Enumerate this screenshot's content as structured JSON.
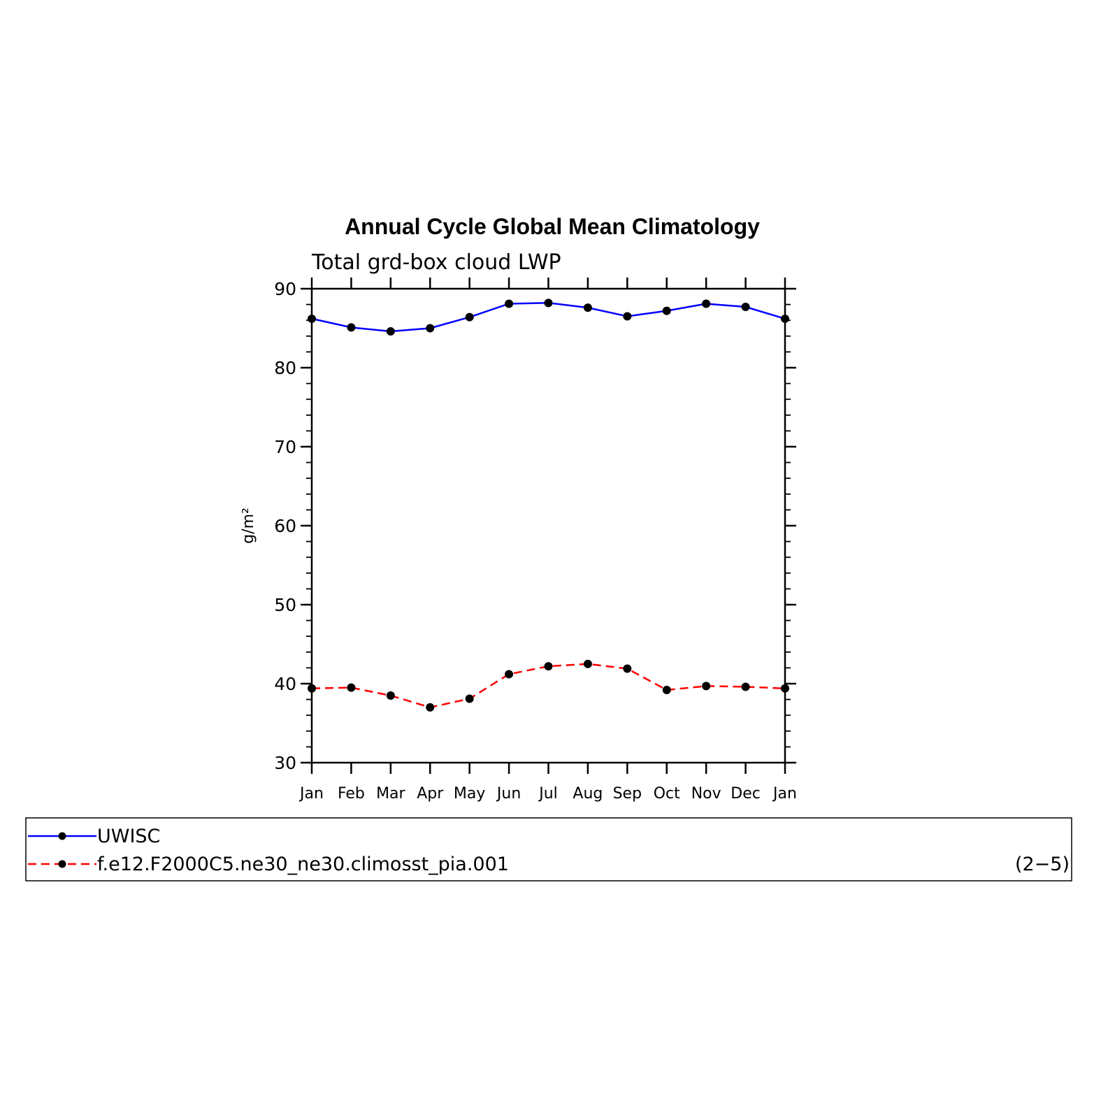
{
  "chart_data": {
    "type": "line",
    "title": "Annual Cycle Global Mean Climatology",
    "subtitle": "Total grd-box cloud LWP",
    "ylabel": "g/m²",
    "xlabel": "",
    "ylim": [
      30,
      90
    ],
    "yticks": [
      "30",
      "40",
      "50",
      "60",
      "70",
      "80",
      "90"
    ],
    "categories": [
      "Jan",
      "Feb",
      "Mar",
      "Apr",
      "May",
      "Jun",
      "Jul",
      "Aug",
      "Sep",
      "Oct",
      "Nov",
      "Dec",
      "Jan"
    ],
    "grid": false,
    "legend_position": "bottom",
    "panel_label": "(2−5)",
    "series": [
      {
        "name": "UWISC",
        "color": "#0000ff",
        "line_style": "solid",
        "values": [
          86.2,
          85.1,
          84.6,
          85.0,
          86.4,
          88.1,
          88.2,
          87.6,
          86.5,
          87.2,
          88.1,
          87.7,
          86.2
        ]
      },
      {
        "name": "f.e12.F2000C5.ne30_ne30.climosst_pia.001",
        "color": "#ff0000",
        "line_style": "dashed",
        "values": [
          39.4,
          39.5,
          38.5,
          37.0,
          38.1,
          41.2,
          42.2,
          42.5,
          41.9,
          39.2,
          39.7,
          39.6,
          39.4
        ]
      }
    ]
  }
}
